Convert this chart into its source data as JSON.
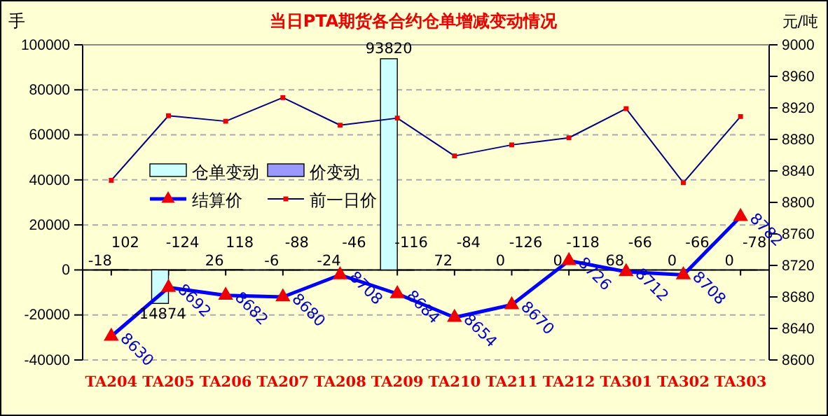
{
  "chart_data": {
    "type": "bar",
    "title": "当日PTA期货各合约仓单增减变动情况",
    "ylabel": "手",
    "y2label": "元/吨",
    "categories": [
      "TA204",
      "TA205",
      "TA206",
      "TA207",
      "TA208",
      "TA209",
      "TA210",
      "TA211",
      "TA212",
      "TA301",
      "TA302",
      "TA303"
    ],
    "series": [
      {
        "name": "仓单变动",
        "color": "#ccffff",
        "values": [
          -18,
          -14874,
          26,
          -6,
          -24,
          93820,
          72,
          0,
          0,
          68,
          0,
          0
        ]
      },
      {
        "name": "价变动",
        "color": "#9999ff",
        "values": [
          102,
          -124,
          118,
          -88,
          -46,
          -116,
          -84,
          -126,
          -118,
          -66,
          -66,
          -78
        ]
      },
      {
        "name": "结算价",
        "type": "line",
        "axis": "y2",
        "color": "#0000ff",
        "marker": "triangle",
        "values": [
          8630,
          8692,
          8682,
          8680,
          8708,
          8684,
          8654,
          8670,
          8726,
          8712,
          8708,
          8782
        ]
      },
      {
        "name": "前一日价",
        "type": "line",
        "axis": "y2",
        "color": "#000080",
        "marker": "square",
        "data_labels": false,
        "values": [
          8828,
          8910,
          8903,
          8933,
          8898,
          8907,
          8859,
          8873,
          8882,
          8919,
          8825,
          8909
        ]
      }
    ],
    "ylim": [
      -40000,
      100000
    ],
    "yticks": [
      -40000,
      -20000,
      0,
      20000,
      40000,
      60000,
      80000,
      100000
    ],
    "y2lim": [
      8600,
      9000
    ],
    "y2ticks": [
      8600,
      8640,
      8680,
      8720,
      8760,
      8800,
      8840,
      8880,
      8920,
      8960,
      9000
    ],
    "grid": "y",
    "legend": "left",
    "data_labels": true
  }
}
